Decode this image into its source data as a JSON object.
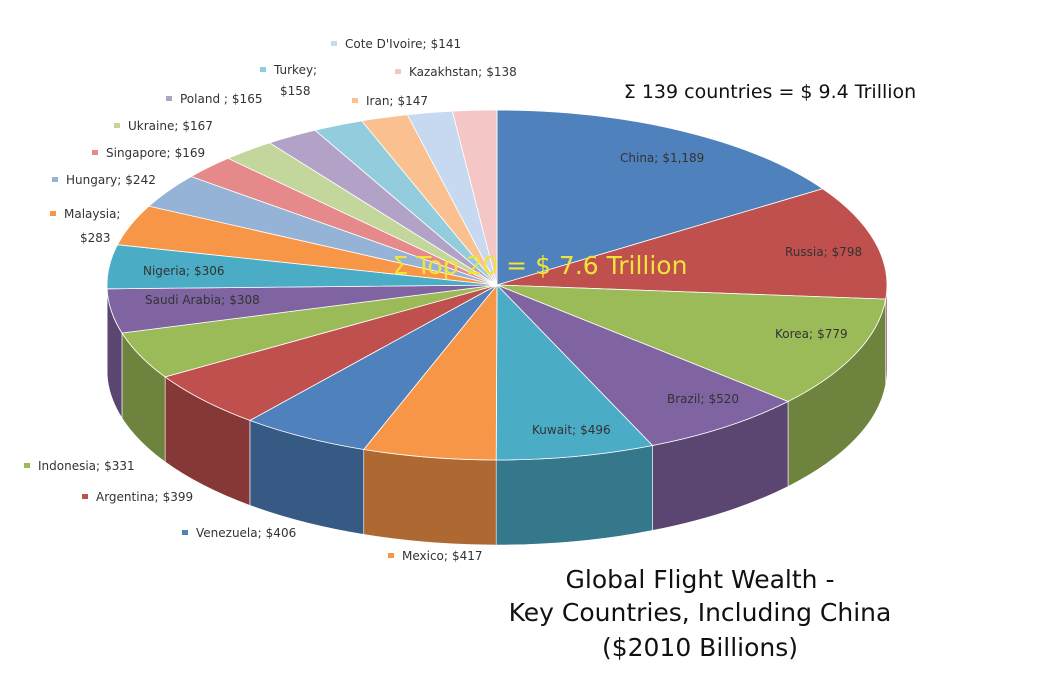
{
  "chart_data": {
    "type": "pie3d",
    "title": [
      "Global Flight Wealth -",
      "Key Countries, Including China",
      "($2010 Billions)"
    ],
    "annotations": [
      "Σ Top 20 = $ 7.6 Trillion",
      "Σ 139 countries = $ 9.4 Trillion"
    ],
    "categories": [
      "China;",
      "Russia;",
      "Korea;",
      "Brazil;",
      "Kuwait;",
      "Mexico;",
      "Venezuela;",
      "Argentina;",
      "Indonesia;",
      "Saudi Arabia;",
      "Nigeria;",
      "Malaysia;",
      "Hungary;",
      "Singapore;",
      "Ukraine;",
      "Poland ;",
      "Turkey;",
      "Iran;",
      "Cote D'Ivoire;",
      "Kazakhstan;"
    ],
    "values": [
      1189,
      798,
      779,
      520,
      496,
      417,
      406,
      399,
      331,
      308,
      306,
      283,
      242,
      169,
      167,
      165,
      158,
      147,
      141,
      138
    ],
    "value_labels": [
      "$1,189",
      "$798",
      "$779",
      "$520",
      "$496",
      "$417",
      "$406",
      "$399",
      "$331",
      "$308",
      "$306",
      "$283",
      "$242",
      "$169",
      "$167",
      "$165",
      "$158",
      "$147",
      "$141",
      "$138"
    ],
    "colors": [
      "#4f81bd",
      "#c0504d",
      "#9bbb59",
      "#8064a2",
      "#4bacc6",
      "#f79646",
      "#4f81bd",
      "#c0504d",
      "#9bbb59",
      "#8064a2",
      "#4bacc6",
      "#f79646",
      "#95b3d7",
      "#e6898a",
      "#c3d69b",
      "#b3a2c7",
      "#93cddd",
      "#fac090",
      "#c6d9f1",
      "#f5c6c6"
    ]
  }
}
